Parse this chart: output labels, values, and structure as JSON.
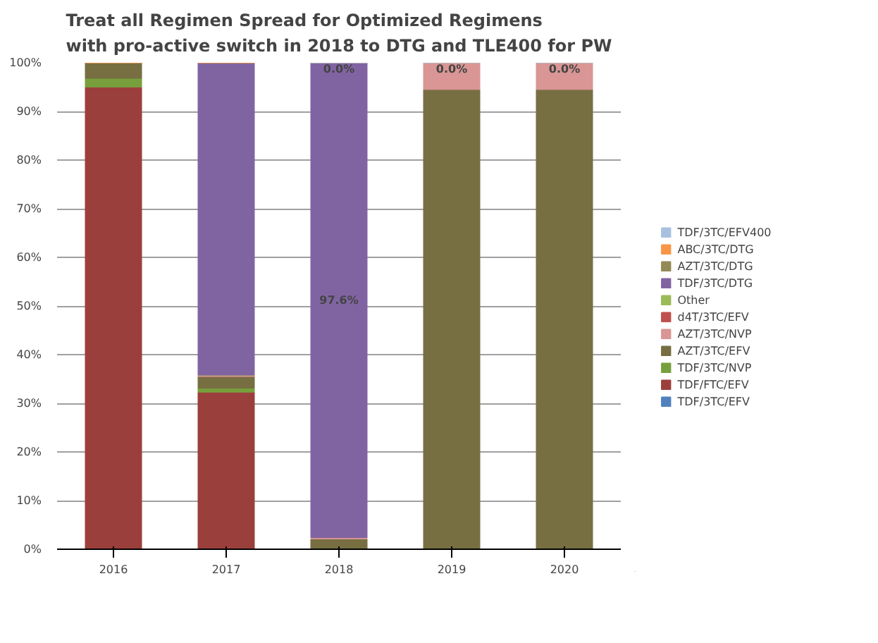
{
  "chart_data": {
    "type": "bar",
    "stacked": true,
    "title": "Treat all Regimen Spread for Optimized Regimens\nwith pro-active switch in 2018 to DTG and TLE400 for PW",
    "categories": [
      "2016",
      "2017",
      "2018",
      "2019",
      "2020"
    ],
    "ylim": [
      0,
      100
    ],
    "yticks": [
      {
        "value": 0,
        "label": "0%"
      },
      {
        "value": 10,
        "label": "10%"
      },
      {
        "value": 20,
        "label": "20%"
      },
      {
        "value": 30,
        "label": "30%"
      },
      {
        "value": 40,
        "label": "40%"
      },
      {
        "value": 50,
        "label": "50%"
      },
      {
        "value": 60,
        "label": "60%"
      },
      {
        "value": 70,
        "label": "70%"
      },
      {
        "value": 80,
        "label": "80%"
      },
      {
        "value": 90,
        "label": "90%"
      },
      {
        "value": 100,
        "label": "100%"
      }
    ],
    "grid": "y",
    "legend": "right",
    "series": [
      {
        "name": "TDF/3TC/EFV",
        "color": "#4f81bd",
        "values": [
          0,
          0,
          0,
          0,
          0
        ]
      },
      {
        "name": "TDF/FTC/EFV",
        "color": "#9b3f3c",
        "values": [
          95,
          32.3,
          0,
          0,
          0
        ]
      },
      {
        "name": "TDF/3TC/NVP",
        "color": "#77a03c",
        "values": [
          1.8,
          0.8,
          0,
          0,
          0
        ]
      },
      {
        "name": "AZT/3TC/EFV",
        "color": "#776f42",
        "values": [
          3.2,
          2.4,
          2.1,
          94.5,
          94.5
        ]
      },
      {
        "name": "AZT/3TC/NVP",
        "color": "#d99694",
        "values": [
          0,
          0.3,
          0.3,
          5.5,
          5.5
        ]
      },
      {
        "name": "d4T/3TC/EFV",
        "color": "#c0504d",
        "values": [
          0,
          0,
          0,
          0,
          0
        ]
      },
      {
        "name": "Other",
        "color": "#9bbb59",
        "values": [
          0,
          0,
          0,
          0,
          0
        ]
      },
      {
        "name": "TDF/3TC/DTG",
        "color": "#8064a2",
        "values": [
          0,
          64.2,
          97.6,
          0,
          0
        ],
        "value_labels": [
          null,
          null,
          "97.6%",
          null,
          null
        ]
      },
      {
        "name": "AZT/3TC/DTG",
        "color": "#948a54",
        "values": [
          0,
          0,
          0,
          0,
          0
        ]
      },
      {
        "name": "ABC/3TC/DTG",
        "color": "#f79646",
        "values": [
          0,
          0,
          0,
          0,
          0
        ]
      },
      {
        "name": "TDF/3TC/EFV400",
        "color": "#a9c1e0",
        "values": [
          null,
          null,
          0,
          0,
          0
        ],
        "value_labels": [
          null,
          null,
          "0.0%",
          "0.0%",
          "0.0%"
        ]
      }
    ]
  }
}
